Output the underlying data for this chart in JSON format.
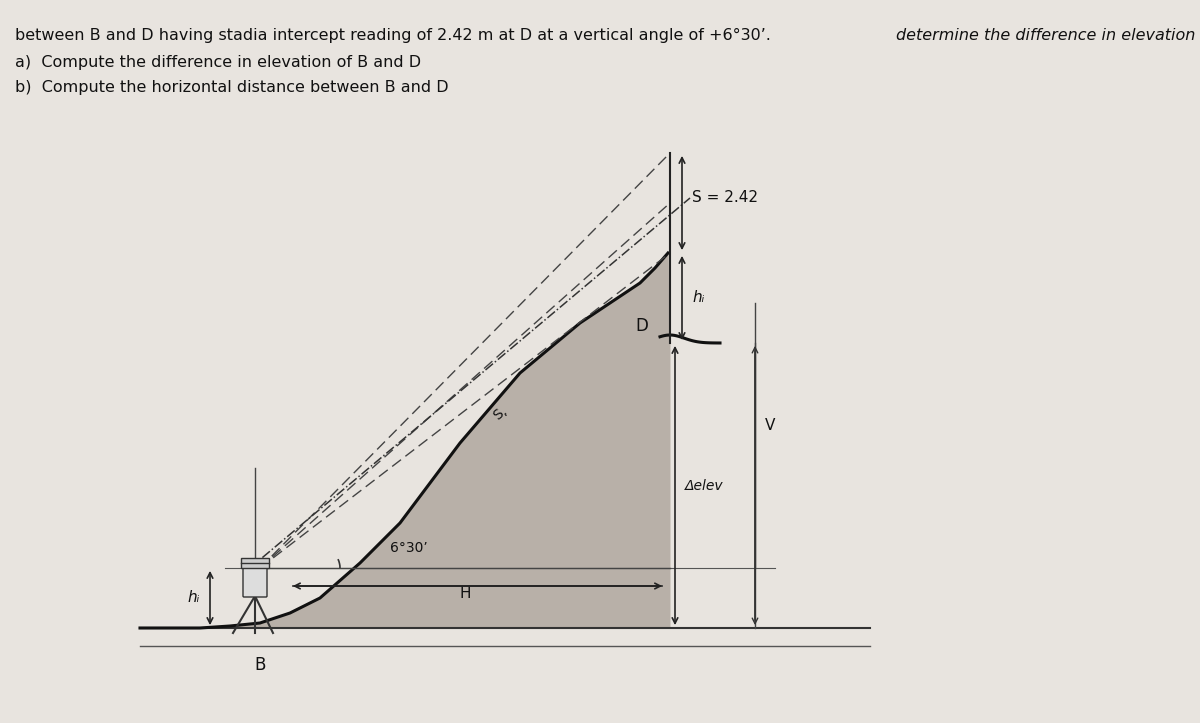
{
  "background_color": "#e8e4df",
  "title_line1": "determine the difference in elevation",
  "title_line2": "between B and D having stadia intercept reading of 2.42 m at D at a vertical angle of +6°30’.",
  "subtitle_a": "a)  Compute the difference in elevation of B and D",
  "subtitle_b": "b)  Compute the horizontal distance between B and D",
  "label_S": "S = 2.42",
  "label_hi_top": "hᵢ",
  "label_hi_bottom": "hᵢ",
  "label_D": "D",
  "label_B": "B",
  "label_V": "V",
  "label_H": "H",
  "label_angle": "6°30’",
  "label_delta_elev": "Δelev",
  "font_size_title": 11.5,
  "font_size_labels": 10,
  "text_color": "#111111"
}
